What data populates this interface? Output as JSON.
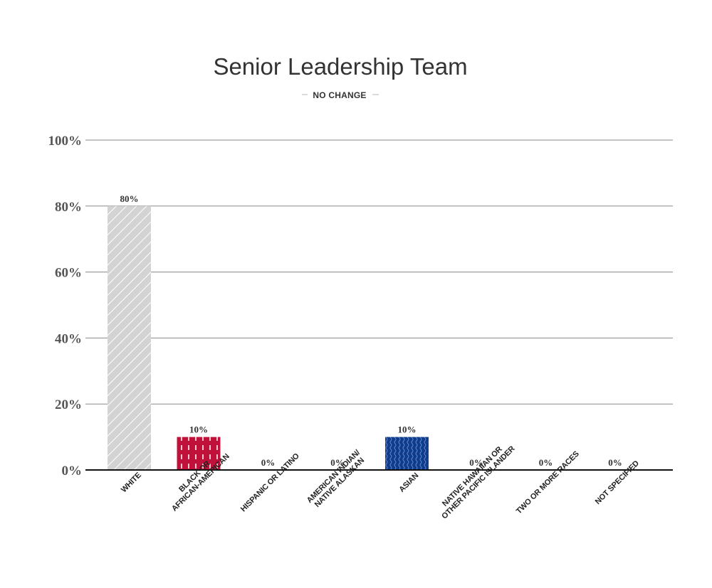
{
  "chart_data": {
    "type": "bar",
    "title": "Senior Leadership Team",
    "subtitle": "NO CHANGE",
    "categories": [
      "WHITE",
      "BLACK OR\nAFRICAN-AMERICAN",
      "HISPANIC OR LATINO",
      "AMERICAN INDIAN/\nNATIVE ALASKAN",
      "ASIAN",
      "NATIVE HAWAIIAN OR\nOTHER PACIFIC ISLANDER",
      "TWO OR MORE RACES",
      "NOT SPECIFIED"
    ],
    "values": [
      80,
      10,
      0,
      0,
      10,
      0,
      0,
      0
    ],
    "data_labels": [
      "80%",
      "10%",
      "0%",
      "0%",
      "10%",
      "0%",
      "0%",
      "0%"
    ],
    "bar_colors": [
      "#d3d3d3",
      "#c0113a",
      "#ffffff",
      "#ffffff",
      "#0f3c8c",
      "#ffffff",
      "#ffffff",
      "#ffffff"
    ],
    "bar_patterns": [
      "diagonal-stripes",
      "dashed-vertical",
      "none",
      "none",
      "wavy-vertical",
      "none",
      "none",
      "none"
    ],
    "yticks": [
      0,
      20,
      40,
      60,
      80,
      100
    ],
    "ytick_labels": [
      "0%",
      "20%",
      "40%",
      "60%",
      "80%",
      "100%"
    ],
    "ylim": [
      0,
      100
    ],
    "xlabel": "",
    "ylabel": "",
    "grid": true,
    "legend": "none"
  }
}
